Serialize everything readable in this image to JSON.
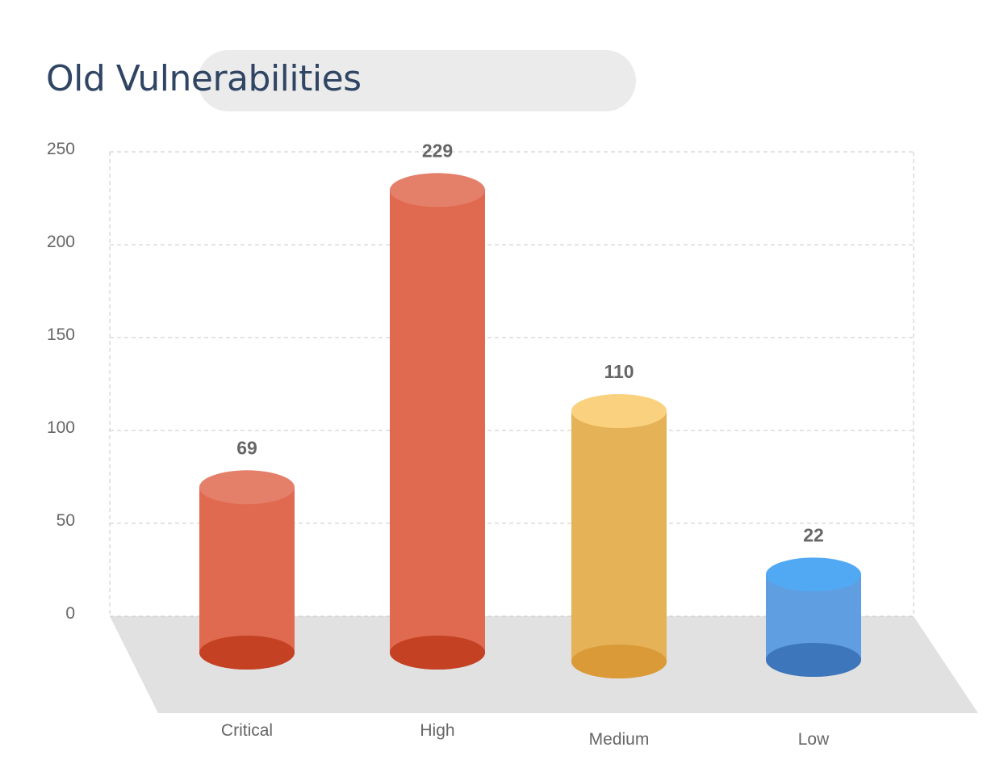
{
  "chart_data": {
    "type": "bar",
    "title": "Old Vulnerabilities",
    "xlabel": "",
    "ylabel": "",
    "categories": [
      "Critical",
      "High",
      "Medium",
      "Low"
    ],
    "values": [
      69,
      229,
      110,
      22
    ],
    "ylim": [
      0,
      250
    ],
    "yticks": [
      0,
      50,
      100,
      150,
      200,
      250
    ],
    "grid": true,
    "legend": "none",
    "style": "3d-cylinder",
    "colors": {
      "Critical": {
        "body": "#e06a4f",
        "top": "#e47f6a",
        "bottom": "#c54123"
      },
      "High": {
        "body": "#e06a4f",
        "top": "#e47f6a",
        "bottom": "#c54123"
      },
      "Medium": {
        "body": "#e6b258",
        "top": "#fad27f",
        "bottom": "#db9a38"
      },
      "Low": {
        "body": "#5f9ee0",
        "top": "#52a9f3",
        "bottom": "#3d76bb"
      }
    }
  }
}
